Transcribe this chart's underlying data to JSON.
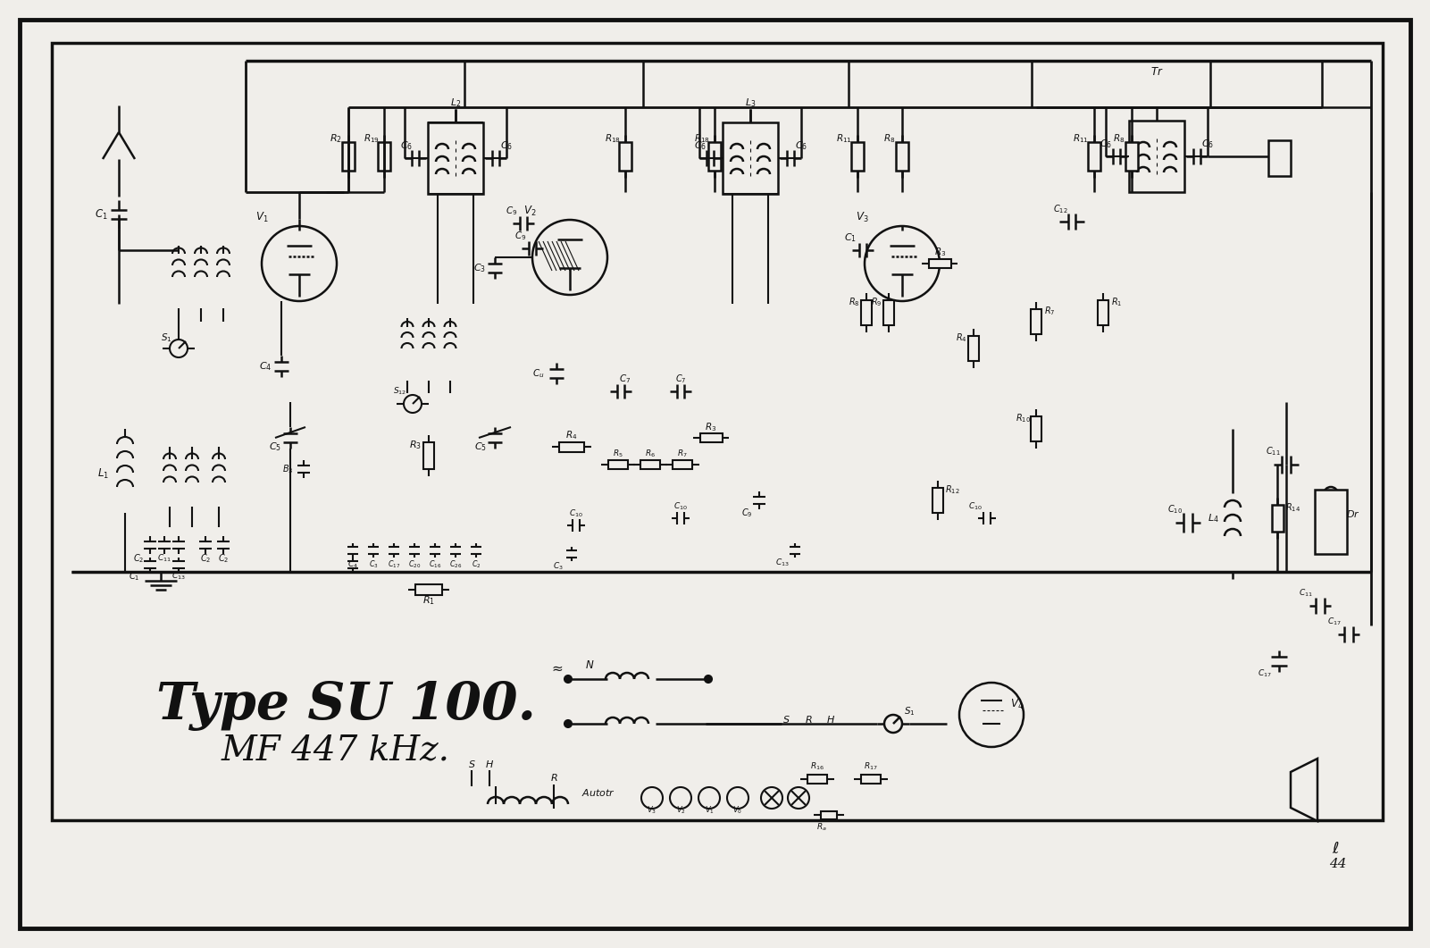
{
  "title": "Type SU 100.",
  "subtitle": "MF 447 kHz.",
  "bg_color": "#f0eeea",
  "line_color": "#111111",
  "title_fontsize": 42,
  "subtitle_fontsize": 28,
  "fig_width": 16.01,
  "fig_height": 10.61
}
